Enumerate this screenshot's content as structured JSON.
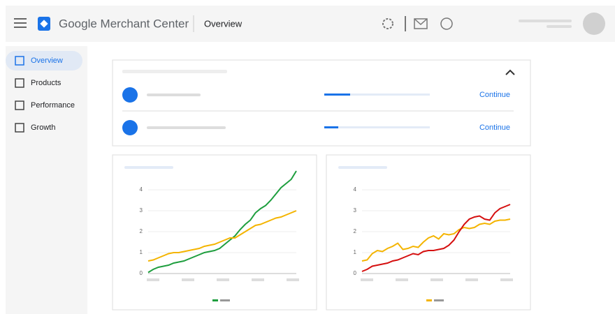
{
  "header": {
    "product": "Google Merchant Center",
    "page": "Overview"
  },
  "sidebar": {
    "items": [
      "Overview",
      "Products",
      "Performance",
      "Growth"
    ]
  },
  "tasks": {
    "actions": [
      "Continue",
      "Continue"
    ]
  },
  "chart_data": [
    {
      "type": "line",
      "ylim": [
        0,
        5
      ],
      "yticks": [
        0,
        1,
        2,
        3,
        4
      ],
      "grid": true,
      "series": [
        {
          "color": "#1e9e3e",
          "values": [
            0.05,
            0.2,
            0.3,
            0.35,
            0.4,
            0.5,
            0.55,
            0.6,
            0.7,
            0.8,
            0.9,
            1.0,
            1.05,
            1.1,
            1.2,
            1.4,
            1.6,
            1.8,
            2.1,
            2.35,
            2.55,
            2.9,
            3.1,
            3.25,
            3.5,
            3.8,
            4.1,
            4.3,
            4.5,
            4.9
          ]
        },
        {
          "color": "#f4b400",
          "values": [
            0.6,
            0.65,
            0.75,
            0.85,
            0.95,
            1.0,
            1.0,
            1.05,
            1.1,
            1.15,
            1.2,
            1.3,
            1.35,
            1.4,
            1.5,
            1.6,
            1.7,
            1.7,
            1.85,
            2.0,
            2.15,
            2.3,
            2.35,
            2.45,
            2.55,
            2.65,
            2.7,
            2.8,
            2.9,
            3.0
          ]
        }
      ]
    },
    {
      "type": "line",
      "ylim": [
        0,
        5
      ],
      "yticks": [
        0,
        1,
        2,
        3,
        4
      ],
      "grid": true,
      "series": [
        {
          "color": "#f4b400",
          "values": [
            0.6,
            0.65,
            0.95,
            1.1,
            1.05,
            1.2,
            1.3,
            1.45,
            1.15,
            1.2,
            1.3,
            1.25,
            1.5,
            1.7,
            1.8,
            1.65,
            1.9,
            1.85,
            1.9,
            2.1,
            2.2,
            2.15,
            2.2,
            2.35,
            2.4,
            2.35,
            2.5,
            2.55,
            2.55,
            2.6
          ]
        },
        {
          "color": "#d50f0f",
          "values": [
            0.1,
            0.2,
            0.35,
            0.4,
            0.45,
            0.5,
            0.6,
            0.65,
            0.75,
            0.85,
            0.95,
            0.9,
            1.05,
            1.1,
            1.1,
            1.15,
            1.2,
            1.35,
            1.6,
            2.0,
            2.35,
            2.6,
            2.7,
            2.75,
            2.6,
            2.55,
            2.9,
            3.1,
            3.2,
            3.3
          ]
        }
      ]
    }
  ]
}
